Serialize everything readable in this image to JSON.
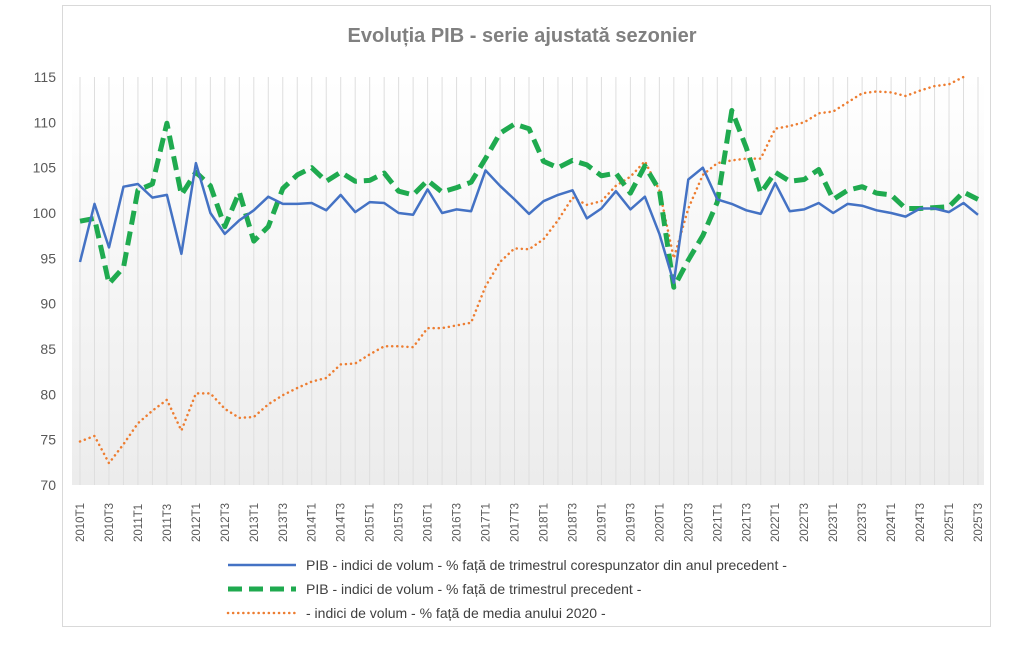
{
  "chart_data": {
    "type": "line",
    "title": "Evoluția PIB - serie ajustată sezonier",
    "xlabel": "",
    "ylabel": "",
    "ylim": [
      70,
      115
    ],
    "yticks": [
      70,
      75,
      80,
      85,
      90,
      95,
      100,
      105,
      110,
      115
    ],
    "grid": "vertical category lines",
    "legend_position": "bottom",
    "x": [
      "2010T1",
      "2010T2",
      "2010T3",
      "2010T4",
      "2011T1",
      "2011T2",
      "2011T3",
      "2011T4",
      "2012T1",
      "2012T2",
      "2012T3",
      "2012T4",
      "2013T1",
      "2013T2",
      "2013T3",
      "2013T4",
      "2014T1",
      "2014T2",
      "2014T3",
      "2014T4",
      "2015T1",
      "2015T2",
      "2015T3",
      "2015T4",
      "2016T1",
      "2016T2",
      "2016T3",
      "2016T4",
      "2017T1",
      "2017T2",
      "2017T3",
      "2017T4",
      "2018T1",
      "2018T2",
      "2018T3",
      "2018T4",
      "2019T1",
      "2019T2",
      "2019T3",
      "2019T4",
      "2020T1",
      "2020T2",
      "2020T3",
      "2020T4",
      "2021T1",
      "2021T2",
      "2021T3",
      "2021T4",
      "2022T1",
      "2022T2",
      "2022T3",
      "2022T4",
      "2023T1",
      "2023T2",
      "2023T3",
      "2023T4",
      "2024T1",
      "2024T2",
      "2024T3",
      "2024T4",
      "2025T1",
      "2025T2",
      "2025T3"
    ],
    "series": [
      {
        "name": "PIB - indici de volum - % față de trimestrul corespunzator din anul precedent -",
        "color": "#4472c4",
        "style": "solid",
        "values": [
          94.6,
          101.0,
          96.2,
          102.9,
          103.2,
          101.7,
          102.0,
          95.5,
          105.5,
          100.0,
          97.7,
          99.2,
          100.3,
          101.8,
          101.0,
          101.0,
          101.1,
          100.3,
          102.0,
          100.1,
          101.2,
          101.1,
          100.0,
          99.8,
          102.6,
          100.0,
          100.4,
          100.2,
          104.7,
          103.0,
          101.5,
          99.9,
          101.3,
          102.0,
          102.5,
          99.4,
          100.5,
          102.4,
          100.4,
          101.8,
          97.7,
          92.3,
          103.7,
          105.0,
          101.5,
          101.0,
          100.3,
          99.9,
          103.3,
          100.2,
          100.4,
          101.1,
          100.0,
          101.0,
          100.8,
          100.3,
          100.0,
          99.6,
          100.5,
          100.5,
          100.1,
          101.1,
          99.8
        ]
      },
      {
        "name": "PIB - indici de volum - % față de trimestrul precedent -",
        "color": "#1faa4f",
        "style": "dashed",
        "values": [
          99.1,
          99.4,
          92.2,
          94.0,
          102.5,
          103.2,
          109.9,
          102.0,
          104.5,
          103.0,
          98.5,
          102.3,
          96.9,
          98.5,
          102.7,
          104.2,
          105.0,
          103.5,
          104.5,
          103.5,
          103.6,
          104.4,
          102.4,
          102.0,
          103.6,
          102.3,
          102.8,
          103.4,
          106.0,
          108.8,
          109.8,
          109.3,
          105.7,
          105.0,
          105.8,
          105.3,
          104.1,
          104.4,
          102.2,
          105.2,
          102.5,
          91.8,
          94.8,
          97.5,
          101.2,
          111.3,
          107.2,
          102.2,
          104.5,
          103.5,
          103.7,
          104.8,
          101.5,
          102.5,
          102.9,
          102.2,
          102.0,
          100.5,
          100.5,
          100.6,
          100.7,
          102.3,
          101.5
        ]
      },
      {
        "name": "- indici de volum - % față de media anului 2020 -",
        "color": "#ed7d31",
        "style": "dotted",
        "values": [
          74.8,
          75.4,
          72.4,
          74.5,
          76.8,
          78.2,
          79.4,
          76.0,
          80.1,
          80.1,
          78.4,
          77.4,
          77.5,
          78.9,
          79.9,
          80.7,
          81.4,
          81.8,
          83.3,
          83.4,
          84.4,
          85.3,
          85.3,
          85.2,
          87.3,
          87.3,
          87.6,
          87.9,
          91.9,
          94.6,
          96.1,
          96.0,
          97.1,
          99.2,
          101.7,
          100.9,
          101.3,
          103.0,
          104.0,
          105.7,
          102.5,
          95.0,
          100.5,
          104.2,
          105.5,
          105.8,
          106.0,
          106.0,
          109.3,
          109.6,
          110.0,
          111.0,
          111.2,
          112.2,
          113.2,
          113.4,
          113.3,
          112.9,
          113.5,
          114.0,
          114.2,
          115.0,
          null
        ]
      }
    ]
  }
}
